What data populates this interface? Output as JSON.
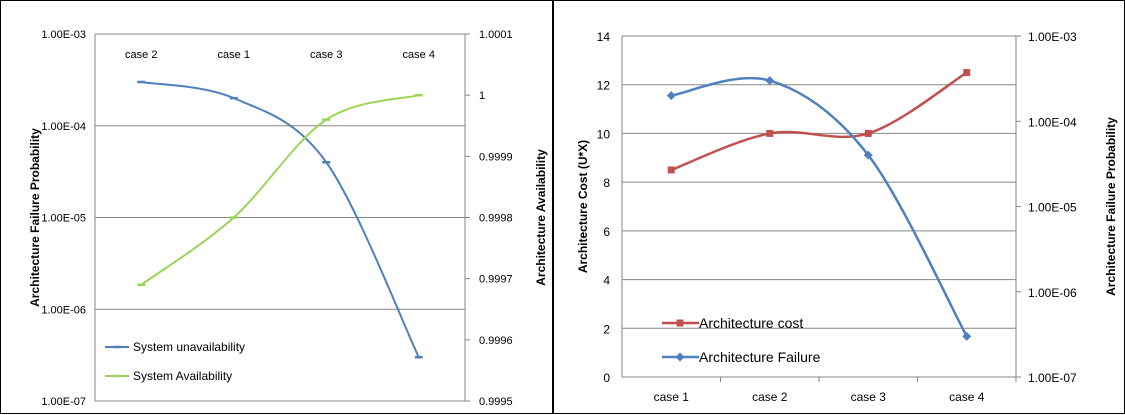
{
  "chart_data": [
    {
      "type": "line",
      "categories": [
        "case 2",
        "case 1",
        "case 3",
        "case 4"
      ],
      "ylabel": "Architecture Failure Probability",
      "y2label": "Architecture Availability",
      "yscale": "log",
      "ylim": [
        1e-07,
        0.001
      ],
      "y2lim": [
        0.9995,
        1.0001
      ],
      "y_ticks": [
        "1.00E-03",
        "1.00E-04",
        "1.00E-05",
        "1.00E-06",
        "1.00E-07"
      ],
      "y2_ticks": [
        "1.0001",
        "1",
        "0.9999",
        "0.9998",
        "0.9997",
        "0.9996",
        "0.9995"
      ],
      "xaxis_position": "top",
      "grid": true,
      "legend_position": "bottom-left",
      "series": [
        {
          "name": "System unavailability",
          "axis": "left",
          "color": "#4f81bd",
          "marker": "dash",
          "values": [
            0.0003,
            0.0002,
            4e-05,
            3e-07
          ]
        },
        {
          "name": "System Availability",
          "axis": "right",
          "color": "#9bd556",
          "marker": "dash",
          "values": [
            0.99969,
            0.9998,
            0.99996,
            1.0
          ]
        }
      ]
    },
    {
      "type": "line",
      "categories": [
        "case 1",
        "case 2",
        "case 3",
        "case 4"
      ],
      "ylabel": "Architecture Cost (U*X)",
      "y2label": "Architecture Failure Probability",
      "ylim": [
        0,
        14
      ],
      "y2scale": "log",
      "y2lim": [
        1e-07,
        0.001
      ],
      "y_ticks": [
        "0",
        "2",
        "4",
        "6",
        "8",
        "10",
        "12",
        "14"
      ],
      "y2_ticks": [
        "1.00E-03",
        "1.00E-04",
        "1.00E-05",
        "1.00E-06",
        "1.00E-07"
      ],
      "grid": true,
      "legend_position": "bottom-left",
      "series": [
        {
          "name": "Architecture cost",
          "axis": "left",
          "color": "#c0504d",
          "marker": "square",
          "values": [
            8.5,
            10,
            10,
            12.5
          ]
        },
        {
          "name": "Architecture Failure",
          "axis": "right",
          "color": "#4f81bd",
          "marker": "diamond",
          "values": [
            0.0002,
            0.0003,
            4e-05,
            3e-07
          ]
        }
      ]
    }
  ]
}
